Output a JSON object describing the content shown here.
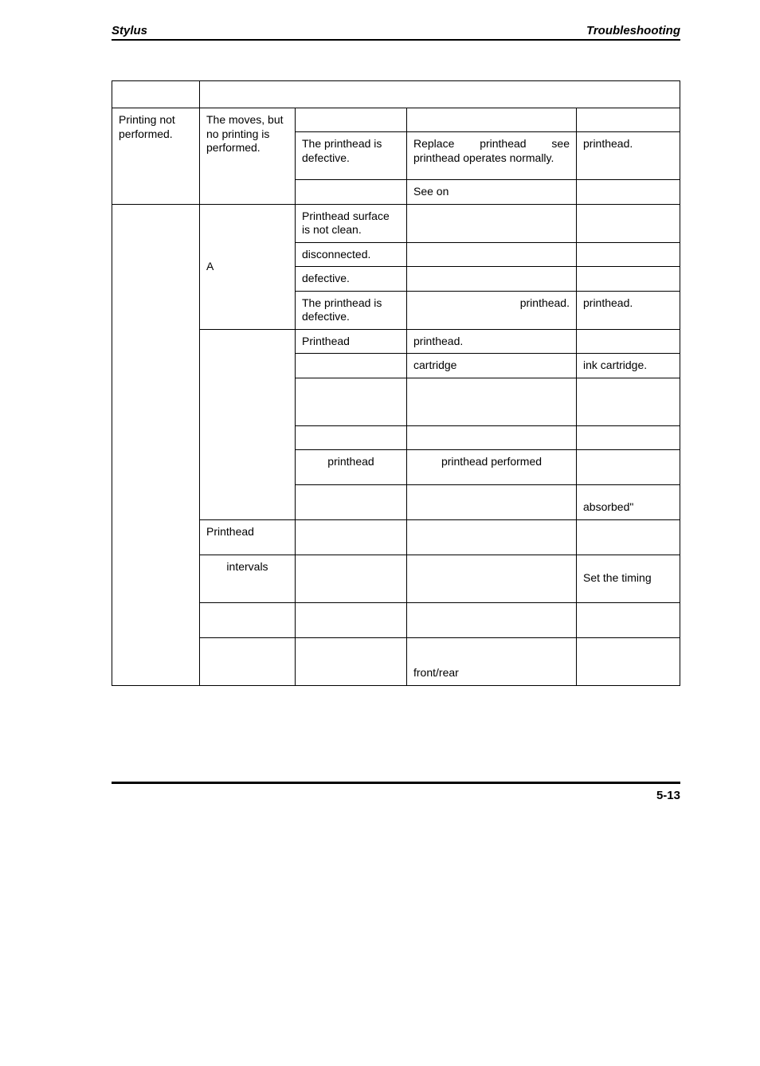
{
  "header": {
    "left": "Stylus",
    "right": "Troubleshooting"
  },
  "page_number": "5-13",
  "table": {
    "rows": [
      {
        "c1": "",
        "c2": "",
        "c3": "",
        "c4": "",
        "c5": ""
      },
      {
        "c3": "",
        "c4": "",
        "c5": ""
      },
      {
        "c1": "Printing not performed.",
        "c2": "The moves, but no printing is performed.",
        "c3": "The printhead is defective.",
        "c4": "Replace printhead see printhead operates normally.",
        "c5": "printhead."
      },
      {
        "c3": "",
        "c4": "See on",
        "c5": ""
      },
      {
        "c1": "",
        "c2": "A",
        "c3": "Printhead surface is not clean.",
        "c4": "",
        "c5": ""
      },
      {
        "c3": "disconnected.",
        "c4": "",
        "c5": ""
      },
      {
        "c3": "defective.",
        "c4": "",
        "c5": ""
      },
      {
        "c3": "The printhead is defective.",
        "c4": "printhead.",
        "c5": "printhead."
      },
      {
        "c2": "",
        "c3": "Printhead",
        "c4": "printhead.",
        "c5": ""
      },
      {
        "c3": "",
        "c4": "cartridge",
        "c5": "ink cartridge."
      },
      {
        "c3": "",
        "c4": "",
        "c5": ""
      },
      {
        "c3": "",
        "c4": "",
        "c5": ""
      },
      {
        "c3": "printhead",
        "c4": "printhead performed",
        "c5": ""
      },
      {
        "c3": "",
        "c4": "",
        "c5": "absorbed\""
      },
      {
        "c2": "Printhead",
        "c3": "",
        "c4": "",
        "c5": ""
      },
      {
        "c2": "intervals",
        "c3": "",
        "c4": "",
        "c5": "Set the timing"
      },
      {
        "c2": "",
        "c3": "",
        "c4": "",
        "c5": ""
      },
      {
        "c2": "",
        "c3": "",
        "c4": "front/rear",
        "c5": ""
      }
    ]
  }
}
